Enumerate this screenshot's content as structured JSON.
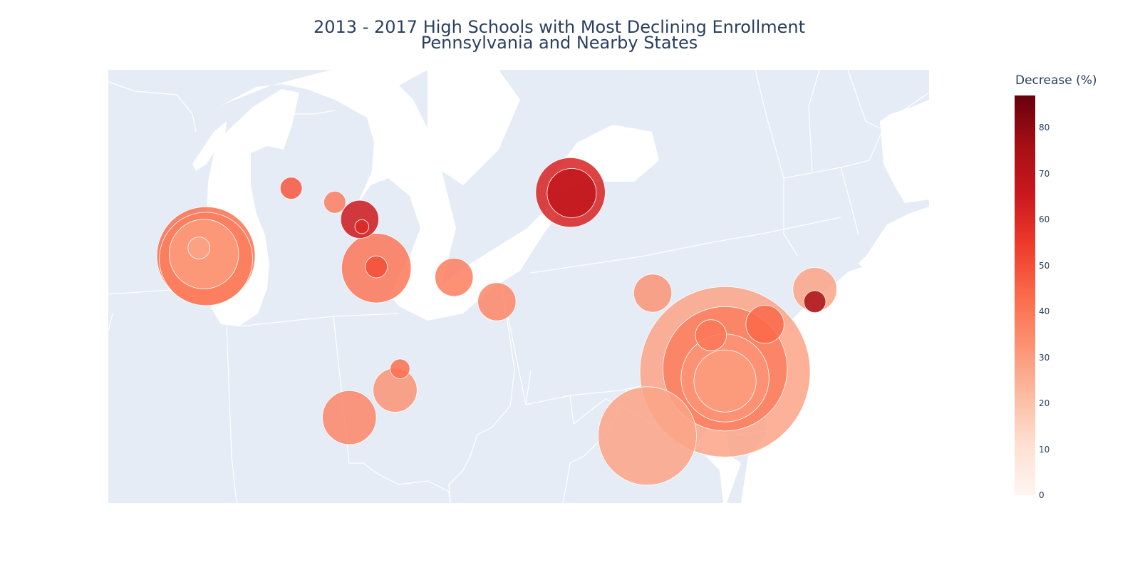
{
  "title": {
    "line1": "2013 - 2017 High Schools with Most Declining Enrollment",
    "line2": "Pennsylvania and Nearby States"
  },
  "colorbar": {
    "title": "Decrease (%)",
    "min": 0,
    "max": 87,
    "ticks": [
      "0",
      "10",
      "20",
      "30",
      "40",
      "50",
      "60",
      "70",
      "80"
    ],
    "tick_values": [
      0,
      10,
      20,
      30,
      40,
      50,
      60,
      70,
      80
    ],
    "colorscale": [
      "#fff5f0",
      "#fee0d2",
      "#fcbba1",
      "#fc9272",
      "#fb6a4a",
      "#ef3b2c",
      "#cb181d",
      "#a50f15",
      "#67000d"
    ]
  },
  "colors": {
    "land": "#e5ecf6",
    "water": "#ffffff",
    "borders": "#ffffff",
    "title": "#2a3f5f"
  },
  "chart_data": {
    "type": "scatter",
    "encoding": "bubble map; bubble size = enrollment decline magnitude, color = decrease (%)",
    "points": [
      {
        "lon": -87.65,
        "lat": 41.85,
        "size": 1.0,
        "decrease": 42
      },
      {
        "lon": -87.65,
        "lat": 41.8,
        "size": 0.9,
        "decrease": 38
      },
      {
        "lon": -87.7,
        "lat": 41.88,
        "size": 0.5,
        "decrease": 30
      },
      {
        "lon": -87.82,
        "lat": 41.98,
        "size": 0.05,
        "decrease": 28
      },
      {
        "lon": -85.6,
        "lat": 42.96,
        "size": 0.05,
        "decrease": 48
      },
      {
        "lon": -84.55,
        "lat": 42.73,
        "size": 0.05,
        "decrease": 38
      },
      {
        "lon": -83.95,
        "lat": 42.45,
        "size": 0.15,
        "decrease": 65
      },
      {
        "lon": -83.9,
        "lat": 42.33,
        "size": 0.02,
        "decrease": 60
      },
      {
        "lon": -83.55,
        "lat": 41.65,
        "size": 0.5,
        "decrease": 40
      },
      {
        "lon": -83.55,
        "lat": 41.67,
        "size": 0.05,
        "decrease": 50
      },
      {
        "lon": -81.68,
        "lat": 41.5,
        "size": 0.15,
        "decrease": 38
      },
      {
        "lon": -80.65,
        "lat": 41.1,
        "size": 0.15,
        "decrease": 36
      },
      {
        "lon": -82.98,
        "lat": 40.0,
        "size": 0.04,
        "decrease": 42
      },
      {
        "lon": -83.1,
        "lat": 39.65,
        "size": 0.2,
        "decrease": 32
      },
      {
        "lon": -84.2,
        "lat": 39.2,
        "size": 0.3,
        "decrease": 36
      },
      {
        "lon": -78.88,
        "lat": 42.89,
        "size": 0.5,
        "decrease": 62
      },
      {
        "lon": -78.85,
        "lat": 42.88,
        "size": 0.25,
        "decrease": 68
      },
      {
        "lon": -76.9,
        "lat": 41.24,
        "size": 0.15,
        "decrease": 32
      },
      {
        "lon": -75.16,
        "lat": 39.95,
        "size": 3.0,
        "decrease": 28
      },
      {
        "lon": -75.16,
        "lat": 40.0,
        "size": 1.6,
        "decrease": 38
      },
      {
        "lon": -75.16,
        "lat": 39.85,
        "size": 0.8,
        "decrease": 32
      },
      {
        "lon": -75.16,
        "lat": 39.8,
        "size": 0.4,
        "decrease": 30
      },
      {
        "lon": -75.5,
        "lat": 40.55,
        "size": 0.1,
        "decrease": 40
      },
      {
        "lon": -74.2,
        "lat": 40.73,
        "size": 0.15,
        "decrease": 44
      },
      {
        "lon": -73.0,
        "lat": 41.3,
        "size": 0.2,
        "decrease": 28
      },
      {
        "lon": -73.0,
        "lat": 41.1,
        "size": 0.05,
        "decrease": 75
      },
      {
        "lon": -77.03,
        "lat": 38.9,
        "size": 1.0,
        "decrease": 28
      }
    ]
  }
}
